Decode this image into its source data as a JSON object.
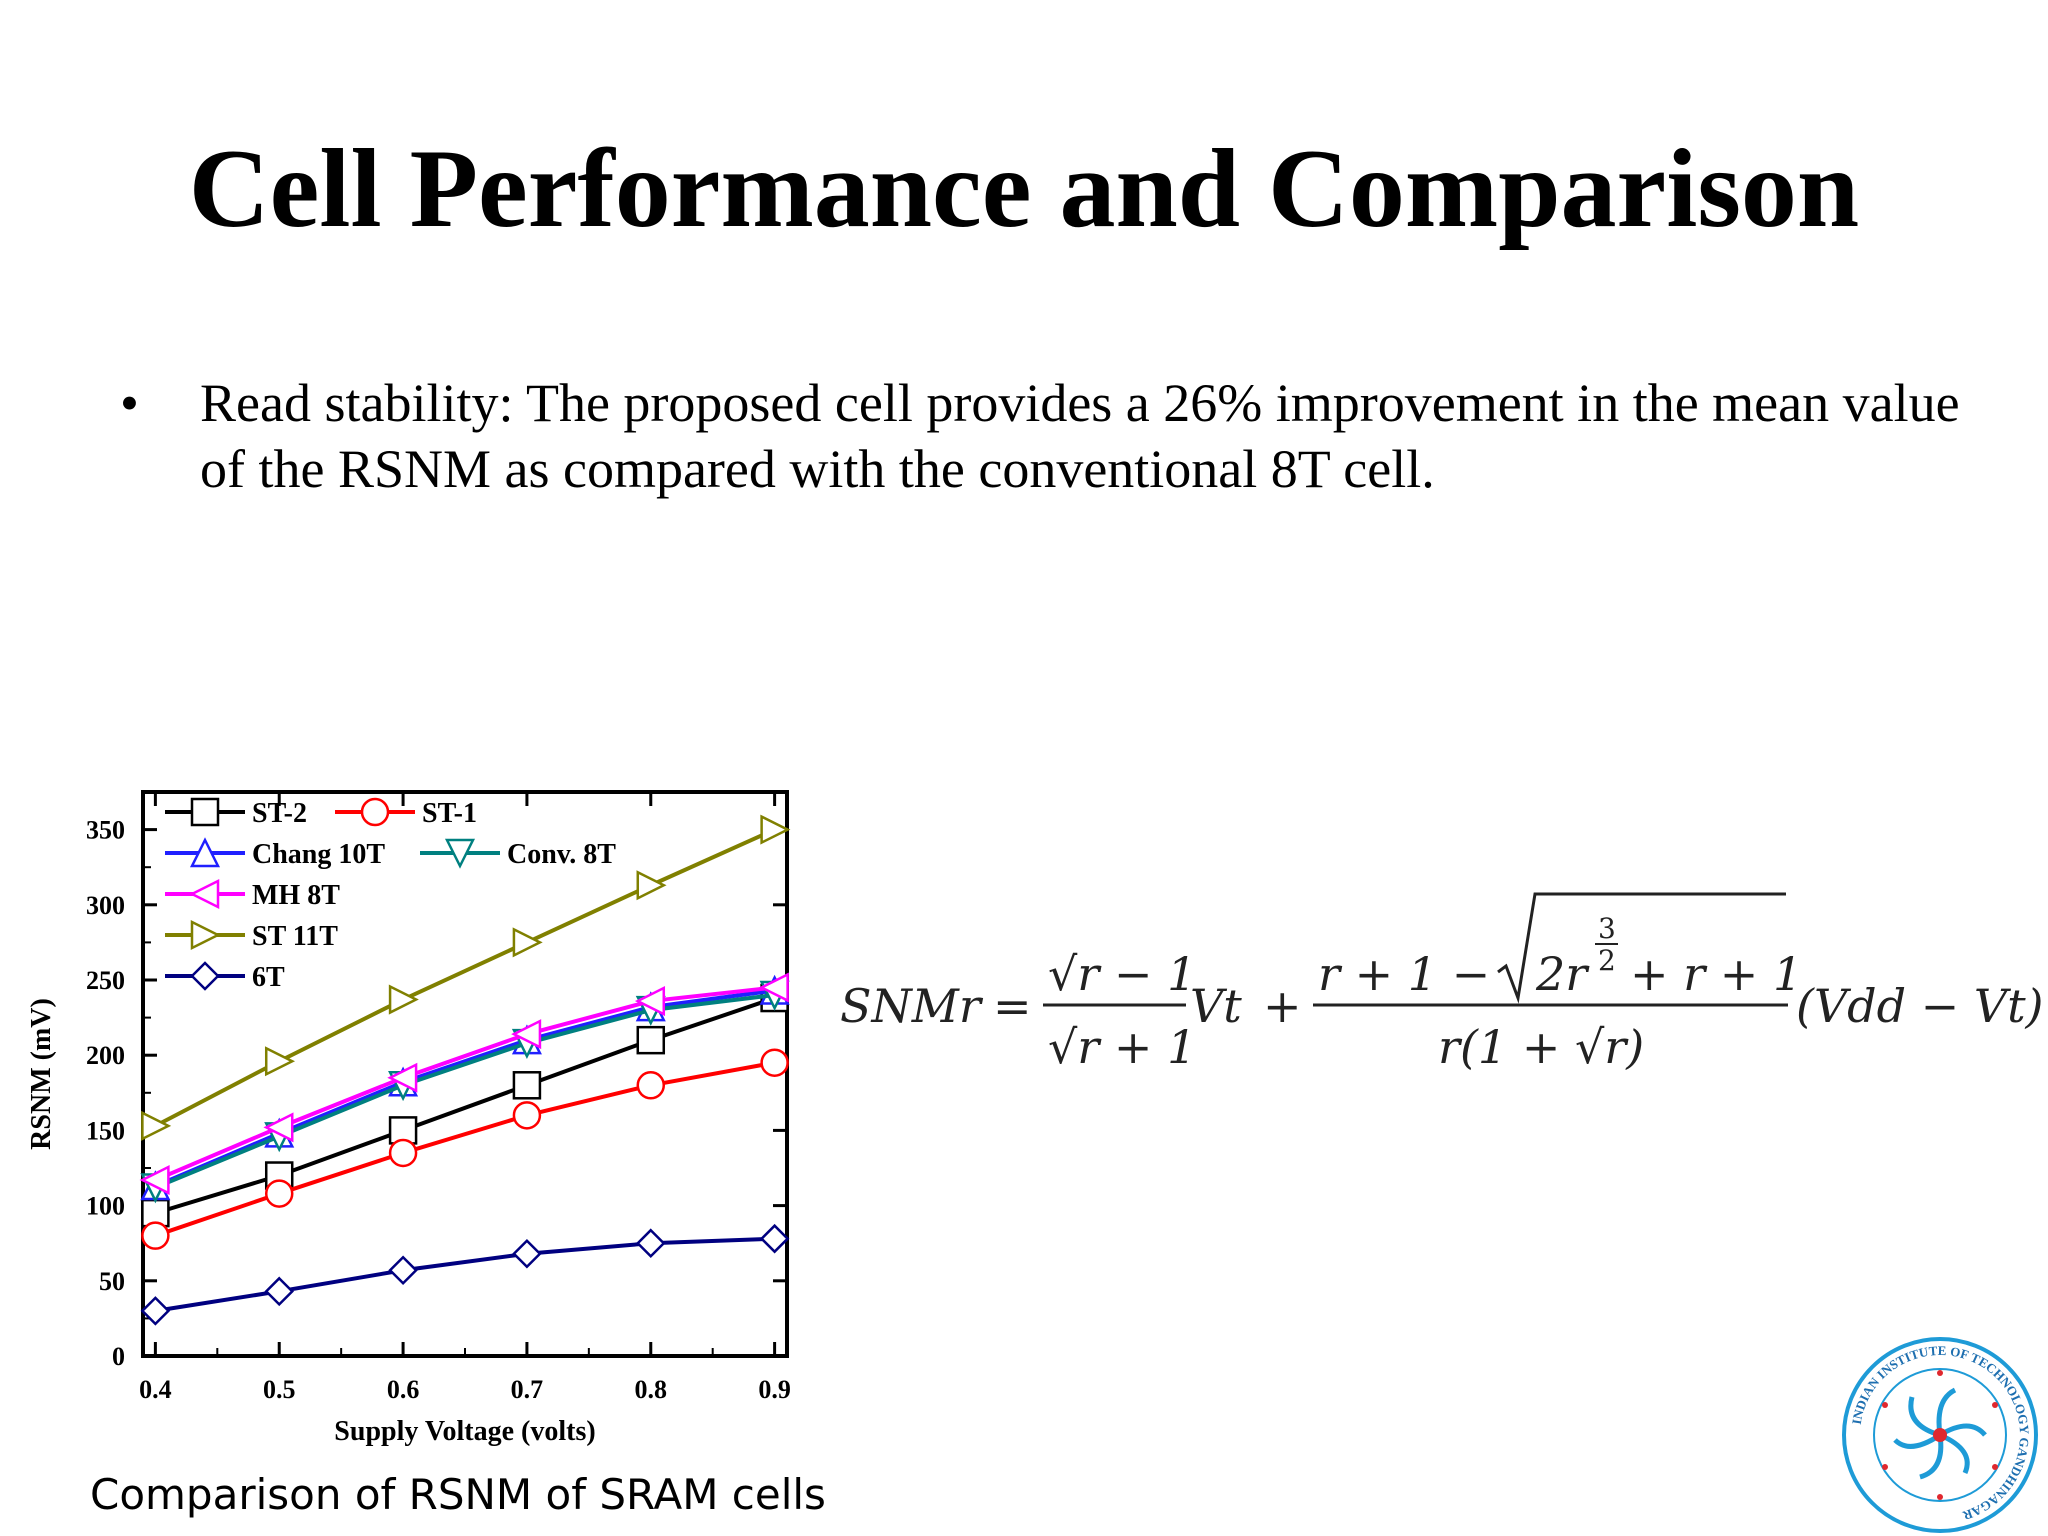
{
  "slide": {
    "title": "Cell Performance and Comparison",
    "bullet": "Read stability: The proposed cell provides a 26% improvement in the mean value of the RSNM as compared with the conventional 8T cell.",
    "caption": "Comparison of RSNM of SRAM cells",
    "formula": {
      "lhs": "SNMr",
      "equals": "=",
      "f1_num": "√r − 1",
      "f1_den": "√r + 1",
      "vt": "Vt",
      "plus": "+",
      "f2_num_a": "r + 1 −",
      "f2_num_root": "2r",
      "f2_exp_num": "3",
      "f2_exp_den": "2",
      "f2_num_b": "+ r + 1",
      "f2_den": "r(1 + √r)",
      "tail": "(Vdd − Vt)"
    },
    "logo": {
      "icon": "iit-gandhinagar-seal-icon",
      "text": "INDIAN INSTITUTE OF TECHNOLOGY GANDHINAGAR"
    }
  },
  "chart_data": {
    "type": "line",
    "xlabel": "Supply Voltage (volts)",
    "ylabel": "RSNM (mV)",
    "x": [
      0.4,
      0.5,
      0.6,
      0.7,
      0.8,
      0.9
    ],
    "x_ticks": [
      "0.4",
      "0.5",
      "0.6",
      "0.7",
      "0.8",
      "0.9"
    ],
    "y_ticks": [
      "0",
      "50",
      "100",
      "150",
      "200",
      "250",
      "300",
      "350"
    ],
    "xlim": [
      0.39,
      0.91
    ],
    "ylim": [
      0,
      375
    ],
    "grid": false,
    "legend_position": "top-left",
    "series": [
      {
        "name": "ST-2",
        "color": "#000000",
        "marker": "square",
        "values": [
          95,
          120,
          150,
          180,
          210,
          238
        ]
      },
      {
        "name": "ST-1",
        "color": "#ff0000",
        "marker": "circle",
        "values": [
          80,
          108,
          135,
          160,
          180,
          195
        ]
      },
      {
        "name": "Chang 10T",
        "color": "#2020ff",
        "marker": "triangle-up",
        "values": [
          113,
          148,
          182,
          210,
          232,
          243
        ]
      },
      {
        "name": "Conv. 8T",
        "color": "#008080",
        "marker": "triangle-down",
        "values": [
          112,
          146,
          180,
          208,
          230,
          240
        ]
      },
      {
        "name": "MH 8T",
        "color": "#ff00ff",
        "marker": "triangle-left",
        "values": [
          117,
          152,
          185,
          214,
          236,
          245
        ]
      },
      {
        "name": "ST 11T",
        "color": "#808000",
        "marker": "triangle-right",
        "values": [
          153,
          196,
          237,
          275,
          313,
          350
        ]
      },
      {
        "name": "6T",
        "color": "#000080",
        "marker": "diamond",
        "values": [
          30,
          43,
          57,
          68,
          75,
          78
        ]
      }
    ]
  }
}
